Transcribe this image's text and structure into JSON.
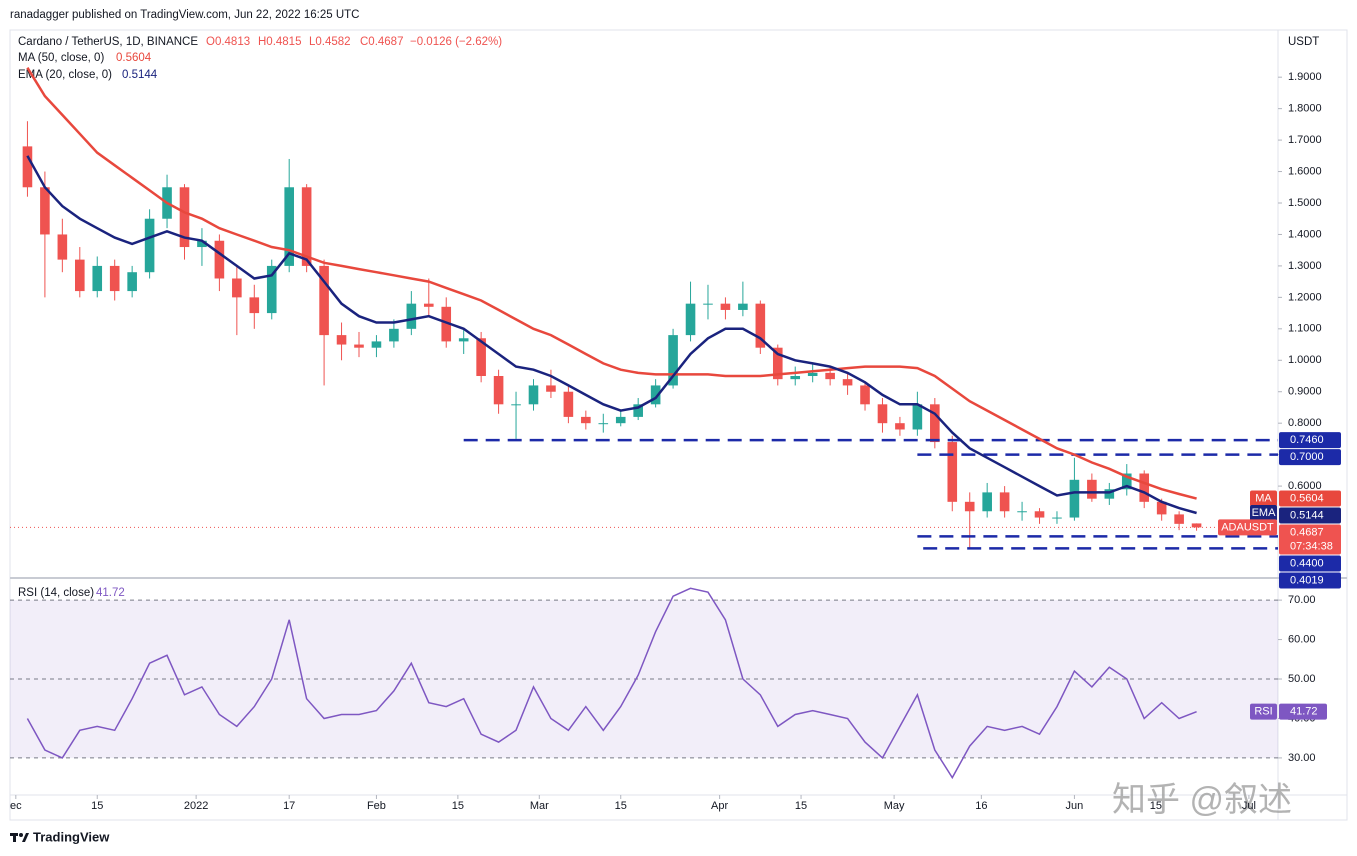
{
  "chart_data": {
    "type": "candlestick",
    "publisher": "ranadagger published on TradingView.com, Jun 22, 2022 16:25 UTC",
    "title": "Cardano / TetherUS, 1D, BINANCE",
    "ohlc_text": [
      "O0.4813",
      "H0.4815",
      "L0.4582",
      "C0.4687",
      "−0.0126 (−2.62%)"
    ],
    "axis_label": "USDT",
    "footer": "TradingView",
    "watermark": "知乎 @叙述",
    "up_color": "#26a69a",
    "down_color": "#ef5350",
    "x": [
      "2021-12-03",
      "2021-12-06",
      "2021-12-09",
      "2021-12-12",
      "2021-12-15",
      "2021-12-18",
      "2021-12-21",
      "2021-12-24",
      "2021-12-27",
      "2021-12-30",
      "2022-01-02",
      "2022-01-05",
      "2022-01-08",
      "2022-01-11",
      "2022-01-14",
      "2022-01-17",
      "2022-01-20",
      "2022-01-23",
      "2022-01-26",
      "2022-01-29",
      "2022-02-01",
      "2022-02-04",
      "2022-02-07",
      "2022-02-10",
      "2022-02-13",
      "2022-02-16",
      "2022-02-19",
      "2022-02-22",
      "2022-02-25",
      "2022-02-28",
      "2022-03-03",
      "2022-03-06",
      "2022-03-09",
      "2022-03-12",
      "2022-03-15",
      "2022-03-18",
      "2022-03-21",
      "2022-03-24",
      "2022-03-27",
      "2022-03-30",
      "2022-04-02",
      "2022-04-05",
      "2022-04-08",
      "2022-04-11",
      "2022-04-14",
      "2022-04-17",
      "2022-04-20",
      "2022-04-23",
      "2022-04-26",
      "2022-04-29",
      "2022-05-02",
      "2022-05-05",
      "2022-05-08",
      "2022-05-11",
      "2022-05-14",
      "2022-05-17",
      "2022-05-20",
      "2022-05-23",
      "2022-05-26",
      "2022-05-29",
      "2022-06-01",
      "2022-06-04",
      "2022-06-07",
      "2022-06-10",
      "2022-06-13",
      "2022-06-16",
      "2022-06-19",
      "2022-06-22"
    ],
    "open": [
      1.68,
      1.55,
      1.4,
      1.32,
      1.22,
      1.3,
      1.22,
      1.28,
      1.45,
      1.55,
      1.36,
      1.38,
      1.26,
      1.2,
      1.15,
      1.3,
      1.55,
      1.3,
      1.08,
      1.05,
      1.04,
      1.06,
      1.1,
      1.18,
      1.17,
      1.06,
      1.07,
      0.95,
      0.86,
      0.86,
      0.92,
      0.9,
      0.82,
      0.8,
      0.8,
      0.82,
      0.86,
      0.92,
      1.08,
      1.18,
      1.18,
      1.16,
      1.18,
      1.04,
      0.94,
      0.95,
      0.96,
      0.94,
      0.92,
      0.86,
      0.8,
      0.78,
      0.86,
      0.74,
      0.55,
      0.52,
      0.58,
      0.52,
      0.52,
      0.5,
      0.5,
      0.62,
      0.56,
      0.59,
      0.64,
      0.55,
      0.51,
      0.4813
    ],
    "high": [
      1.76,
      1.6,
      1.45,
      1.36,
      1.33,
      1.32,
      1.3,
      1.48,
      1.59,
      1.56,
      1.42,
      1.4,
      1.3,
      1.24,
      1.32,
      1.64,
      1.56,
      1.32,
      1.12,
      1.09,
      1.08,
      1.13,
      1.22,
      1.26,
      1.2,
      1.1,
      1.09,
      0.97,
      0.9,
      0.94,
      0.97,
      0.92,
      0.84,
      0.83,
      0.84,
      0.88,
      0.94,
      1.1,
      1.25,
      1.24,
      1.2,
      1.25,
      1.19,
      1.05,
      0.98,
      0.99,
      0.98,
      0.96,
      0.93,
      0.88,
      0.82,
      0.9,
      0.88,
      0.76,
      0.58,
      0.61,
      0.6,
      0.55,
      0.53,
      0.52,
      0.69,
      0.64,
      0.61,
      0.67,
      0.65,
      0.56,
      0.52,
      0.4815
    ],
    "low": [
      1.52,
      1.2,
      1.28,
      1.2,
      1.2,
      1.19,
      1.2,
      1.26,
      1.42,
      1.32,
      1.3,
      1.22,
      1.08,
      1.1,
      1.13,
      1.28,
      1.28,
      0.92,
      1.0,
      1.01,
      1.01,
      1.04,
      1.08,
      1.14,
      1.04,
      1.02,
      0.93,
      0.83,
      0.75,
      0.84,
      0.88,
      0.8,
      0.78,
      0.77,
      0.79,
      0.81,
      0.85,
      0.91,
      1.06,
      1.13,
      1.13,
      1.14,
      1.02,
      0.92,
      0.92,
      0.93,
      0.92,
      0.89,
      0.84,
      0.77,
      0.76,
      0.76,
      0.72,
      0.52,
      0.4,
      0.5,
      0.5,
      0.49,
      0.48,
      0.48,
      0.49,
      0.55,
      0.54,
      0.57,
      0.53,
      0.49,
      0.46,
      0.4582
    ],
    "close": [
      1.55,
      1.4,
      1.32,
      1.22,
      1.3,
      1.22,
      1.28,
      1.45,
      1.55,
      1.36,
      1.38,
      1.26,
      1.2,
      1.15,
      1.3,
      1.55,
      1.3,
      1.08,
      1.05,
      1.04,
      1.06,
      1.1,
      1.18,
      1.17,
      1.06,
      1.07,
      0.95,
      0.86,
      0.86,
      0.92,
      0.9,
      0.82,
      0.8,
      0.8,
      0.82,
      0.86,
      0.92,
      1.08,
      1.18,
      1.18,
      1.16,
      1.18,
      1.04,
      0.94,
      0.95,
      0.96,
      0.94,
      0.92,
      0.86,
      0.8,
      0.78,
      0.86,
      0.74,
      0.55,
      0.52,
      0.58,
      0.52,
      0.52,
      0.5,
      0.5,
      0.62,
      0.56,
      0.59,
      0.64,
      0.55,
      0.51,
      0.48,
      0.4687
    ],
    "series": [
      {
        "name": "MA (50, close, 0)",
        "tag": "MA",
        "value_label": "0.5604",
        "color": "#e8483d",
        "values": [
          1.93,
          1.84,
          1.78,
          1.72,
          1.66,
          1.62,
          1.58,
          1.54,
          1.5,
          1.47,
          1.45,
          1.42,
          1.4,
          1.38,
          1.36,
          1.35,
          1.33,
          1.31,
          1.3,
          1.29,
          1.28,
          1.27,
          1.26,
          1.25,
          1.23,
          1.21,
          1.19,
          1.16,
          1.13,
          1.1,
          1.08,
          1.05,
          1.02,
          0.99,
          0.97,
          0.96,
          0.955,
          0.955,
          0.955,
          0.955,
          0.95,
          0.95,
          0.95,
          0.955,
          0.96,
          0.965,
          0.97,
          0.975,
          0.98,
          0.98,
          0.98,
          0.975,
          0.95,
          0.91,
          0.87,
          0.84,
          0.81,
          0.78,
          0.75,
          0.72,
          0.7,
          0.675,
          0.655,
          0.63,
          0.61,
          0.59,
          0.575,
          0.5604
        ]
      },
      {
        "name": "EMA (20, close, 0)",
        "tag": "EMA",
        "value_label": "0.5144",
        "color": "#1a237e",
        "values": [
          1.65,
          1.55,
          1.49,
          1.45,
          1.42,
          1.39,
          1.37,
          1.39,
          1.41,
          1.39,
          1.38,
          1.34,
          1.3,
          1.26,
          1.27,
          1.34,
          1.32,
          1.25,
          1.18,
          1.14,
          1.12,
          1.12,
          1.13,
          1.14,
          1.12,
          1.1,
          1.06,
          1.02,
          0.98,
          0.97,
          0.95,
          0.92,
          0.89,
          0.86,
          0.84,
          0.85,
          0.88,
          0.95,
          1.02,
          1.07,
          1.1,
          1.1,
          1.07,
          1.02,
          1.0,
          0.99,
          0.98,
          0.96,
          0.93,
          0.89,
          0.86,
          0.86,
          0.83,
          0.77,
          0.72,
          0.69,
          0.66,
          0.63,
          0.6,
          0.57,
          0.58,
          0.58,
          0.58,
          0.6,
          0.58,
          0.55,
          0.53,
          0.5144
        ]
      }
    ],
    "symbol_tag": {
      "label": "ADAUSDT",
      "value_label": "0.4687",
      "countdown": "07:34:38"
    },
    "levels": [
      {
        "value": 0.746,
        "label": "0.7460",
        "start": "2022-02-16"
      },
      {
        "value": 0.7,
        "label": "0.7000",
        "start": "2022-05-05"
      },
      {
        "value": 0.44,
        "label": "0.4400",
        "start": "2022-05-05"
      },
      {
        "value": 0.4019,
        "label": "0.4019",
        "start": "2022-05-06"
      }
    ],
    "level_color": "#1c2aa8",
    "ylim": [
      0.311,
      2.05
    ],
    "yticks": [
      {
        "value": 0.6,
        "label": "0.6000"
      },
      {
        "value": 0.7,
        "label": "0.7000"
      },
      {
        "value": 0.8,
        "label": "0.8000"
      },
      {
        "value": 0.9,
        "label": "0.9000"
      },
      {
        "value": 1.0,
        "label": "1.0000"
      },
      {
        "value": 1.1,
        "label": "1.1000"
      },
      {
        "value": 1.2,
        "label": "1.2000"
      },
      {
        "value": 1.3,
        "label": "1.3000"
      },
      {
        "value": 1.4,
        "label": "1.4000"
      },
      {
        "value": 1.5,
        "label": "1.5000"
      },
      {
        "value": 1.6,
        "label": "1.6000"
      },
      {
        "value": 1.7,
        "label": "1.7000"
      },
      {
        "value": 1.8,
        "label": "1.8000"
      },
      {
        "value": 1.9,
        "label": "1.9000"
      }
    ],
    "xlim": [
      "2021-11-30",
      "2022-07-06"
    ],
    "xticks": [
      {
        "value": "2021-12-01",
        "label": "ec"
      },
      {
        "value": "2021-12-15",
        "label": "15"
      },
      {
        "value": "2022-01-01",
        "label": "2022"
      },
      {
        "value": "2022-01-17",
        "label": "17"
      },
      {
        "value": "2022-02-01",
        "label": "Feb"
      },
      {
        "value": "2022-02-15",
        "label": "15"
      },
      {
        "value": "2022-03-01",
        "label": "Mar"
      },
      {
        "value": "2022-03-15",
        "label": "15"
      },
      {
        "value": "2022-04-01",
        "label": "Apr"
      },
      {
        "value": "2022-04-15",
        "label": "15"
      },
      {
        "value": "2022-05-01",
        "label": "May"
      },
      {
        "value": "2022-05-16",
        "label": "16"
      },
      {
        "value": "2022-06-01",
        "label": "Jun"
      },
      {
        "value": "2022-06-15",
        "label": "15"
      },
      {
        "value": "2022-07-01",
        "label": "Jul"
      }
    ],
    "grid": false,
    "rsi": {
      "name": "RSI (14, close)",
      "tag": "RSI",
      "value_label": "41.72",
      "color": "#7e57c2",
      "values": [
        40,
        32,
        30,
        37,
        38,
        37,
        45,
        54,
        56,
        46,
        48,
        41,
        38,
        43,
        50,
        65,
        45,
        40,
        41,
        41,
        42,
        47,
        54,
        44,
        43,
        45,
        36,
        34,
        37,
        48,
        40,
        37,
        43,
        37,
        43,
        51,
        62,
        71,
        73,
        72,
        65,
        50,
        46,
        38,
        41,
        42,
        41,
        40,
        34,
        30,
        38,
        46,
        32,
        25,
        33,
        38,
        37,
        38,
        36,
        43,
        52,
        48,
        53,
        50,
        40,
        44,
        40,
        41.72
      ],
      "ylim": [
        20.6,
        75.1
      ],
      "yticks": [
        {
          "value": 30,
          "label": "30.00"
        },
        {
          "value": 40,
          "label": "40.00"
        },
        {
          "value": 50,
          "label": "50.00"
        },
        {
          "value": 60,
          "label": "60.00"
        },
        {
          "value": 70,
          "label": "70.00"
        }
      ],
      "band": [
        30,
        70
      ],
      "midline": 50
    }
  }
}
